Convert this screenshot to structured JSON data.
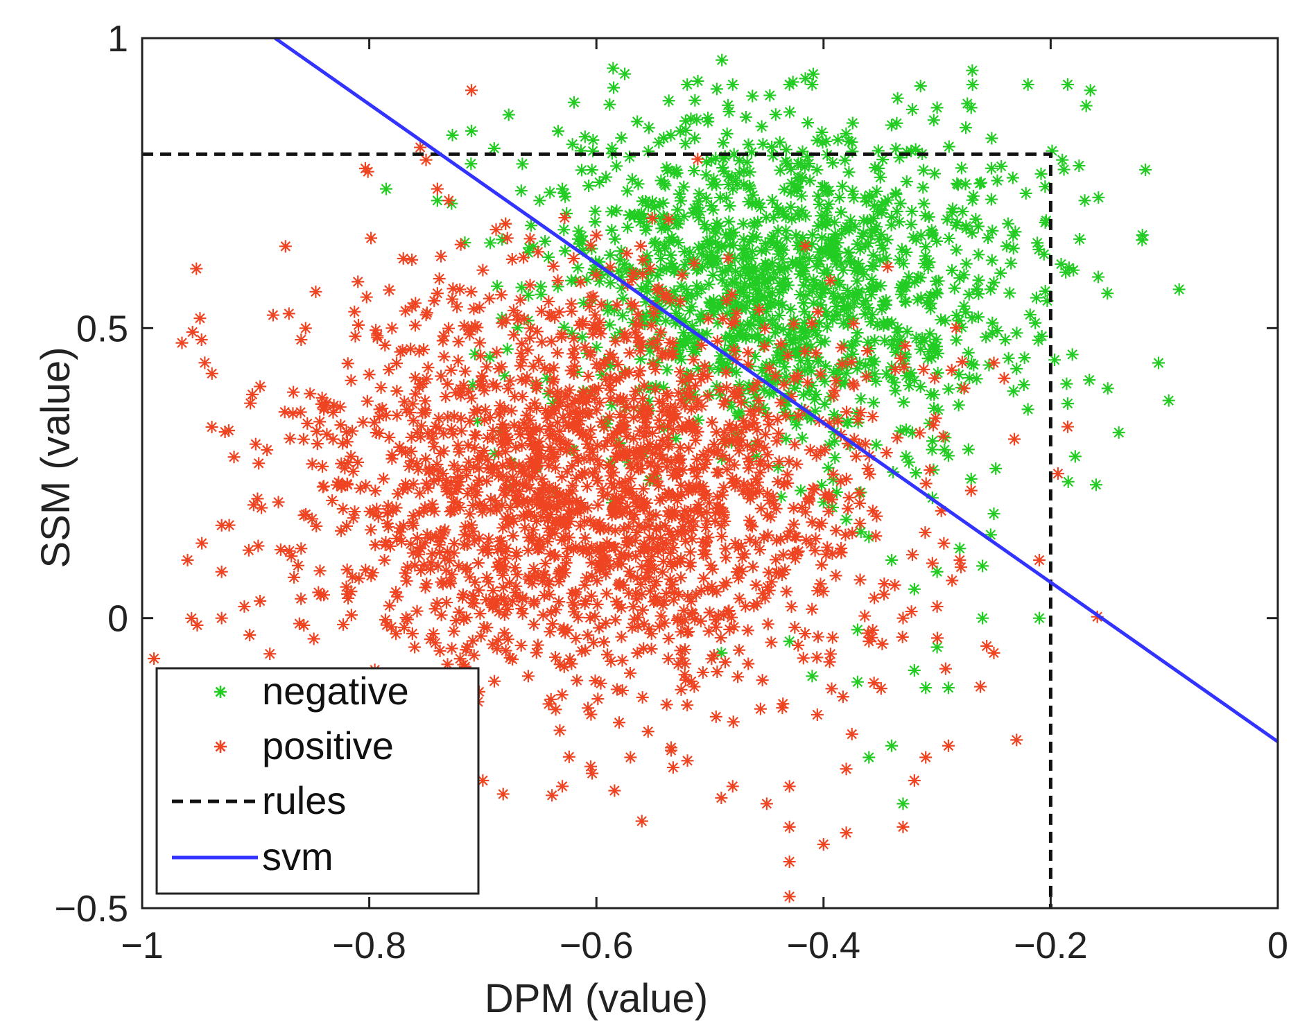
{
  "chart_data": {
    "type": "scatter",
    "title": "",
    "xlabel": "DPM (value)",
    "ylabel": "SSM (value)",
    "xlim": [
      -1,
      0
    ],
    "ylim": [
      -0.5,
      1
    ],
    "xticks": [
      -1,
      -0.8,
      -0.6,
      -0.4,
      -0.2,
      0
    ],
    "xtick_labels": [
      "−1",
      "−0.8",
      "−0.6",
      "−0.4",
      "−0.2",
      "0"
    ],
    "yticks": [
      -0.5,
      0,
      0.5,
      1
    ],
    "ytick_labels": [
      "−0.5",
      "0",
      "0.5",
      "1"
    ],
    "grid": false,
    "legend_position": "bottom-left",
    "colors": {
      "negative": "#22cc22",
      "positive": "#ee4422",
      "rules": "#111111",
      "svm": "#3333ff"
    },
    "series": [
      {
        "name": "negative",
        "kind": "scatter",
        "marker": "asterisk",
        "cluster": {
          "count": 1300,
          "center": [
            -0.44,
            0.58
          ],
          "spread": [
            0.11,
            0.15
          ]
        },
        "points": [
          [
            -0.52,
            0.92
          ],
          [
            -0.48,
            0.92
          ],
          [
            -0.41,
            0.92
          ],
          [
            -0.43,
            0.92
          ],
          [
            -0.22,
            0.92
          ],
          [
            -0.185,
            0.92
          ],
          [
            -0.165,
            0.91
          ],
          [
            -0.69,
            0.81
          ],
          [
            -0.71,
            0.84
          ],
          [
            -0.74,
            0.72
          ],
          [
            -0.15,
            0.56
          ],
          [
            -0.105,
            0.44
          ],
          [
            -0.14,
            0.32
          ],
          [
            -0.16,
            0.23
          ],
          [
            -0.21,
            0.0
          ],
          [
            -0.26,
            0.0
          ],
          [
            -0.3,
            -0.05
          ],
          [
            -0.32,
            -0.09
          ],
          [
            -0.29,
            -0.12
          ],
          [
            -0.31,
            -0.12
          ],
          [
            -0.37,
            -0.11
          ],
          [
            -0.36,
            -0.24
          ],
          [
            -0.34,
            -0.22
          ],
          [
            -0.33,
            -0.32
          ],
          [
            -0.41,
            -0.1
          ],
          [
            -0.49,
            -0.06
          ],
          [
            -0.43,
            -0.04
          ],
          [
            -0.37,
            -0.02
          ],
          [
            -0.26,
            0.09
          ],
          [
            -0.25,
            0.18
          ],
          [
            -0.24,
            0.48
          ],
          [
            -0.23,
            0.43
          ],
          [
            -0.22,
            0.36
          ],
          [
            -0.185,
            0.37
          ],
          [
            -0.175,
            0.78
          ],
          [
            -0.17,
            0.72
          ],
          [
            -0.18,
            0.6
          ],
          [
            -0.34,
            0.85
          ],
          [
            -0.3,
            0.88
          ],
          [
            -0.27,
            0.88
          ],
          [
            -0.63,
            0.74
          ],
          [
            -0.65,
            0.72
          ],
          [
            -0.68,
            0.68
          ],
          [
            -0.66,
            0.63
          ],
          [
            -0.61,
            0.83
          ],
          [
            -0.6,
            0.5
          ],
          [
            -0.59,
            0.53
          ],
          [
            -0.55,
            0.44
          ],
          [
            -0.46,
            0.3
          ],
          [
            -0.44,
            0.26
          ],
          [
            -0.42,
            0.22
          ],
          [
            -0.4,
            0.2
          ],
          [
            -0.38,
            0.17
          ],
          [
            -0.36,
            0.14
          ],
          [
            -0.34,
            0.1
          ],
          [
            -0.32,
            0.05
          ],
          [
            -0.3,
            0.08
          ],
          [
            -0.28,
            0.12
          ],
          [
            -0.29,
            0.28
          ],
          [
            -0.27,
            0.24
          ]
        ]
      },
      {
        "name": "positive",
        "kind": "scatter",
        "marker": "asterisk",
        "cluster": {
          "count": 1900,
          "center": [
            -0.6,
            0.22
          ],
          "spread": [
            0.13,
            0.17
          ]
        },
        "points": [
          [
            -0.71,
            0.91
          ],
          [
            -0.75,
            0.79
          ],
          [
            -0.74,
            0.74
          ],
          [
            -0.73,
            0.72
          ],
          [
            -0.96,
            0.1
          ],
          [
            -0.93,
            0.0
          ],
          [
            -0.93,
            0.08
          ],
          [
            -0.93,
            0.16
          ],
          [
            -0.91,
            0.02
          ],
          [
            -0.9,
            0.3
          ],
          [
            -0.89,
            0.29
          ],
          [
            -0.86,
            0.48
          ],
          [
            -0.81,
            0.58
          ],
          [
            -0.77,
            0.62
          ],
          [
            -0.7,
            -0.28
          ],
          [
            -0.63,
            -0.29
          ],
          [
            -0.57,
            -0.24
          ],
          [
            -0.56,
            -0.35
          ],
          [
            -0.49,
            -0.31
          ],
          [
            -0.48,
            -0.29
          ],
          [
            -0.45,
            -0.32
          ],
          [
            -0.43,
            -0.29
          ],
          [
            -0.43,
            -0.36
          ],
          [
            -0.4,
            -0.39
          ],
          [
            -0.38,
            -0.37
          ],
          [
            -0.43,
            -0.42
          ],
          [
            -0.43,
            -0.48
          ],
          [
            -0.375,
            -0.2
          ],
          [
            -0.38,
            -0.26
          ],
          [
            -0.33,
            -0.36
          ],
          [
            -0.32,
            -0.28
          ],
          [
            -0.31,
            -0.24
          ],
          [
            -0.29,
            -0.22
          ],
          [
            -0.25,
            -0.06
          ],
          [
            -0.23,
            -0.21
          ],
          [
            -0.21,
            0.1
          ],
          [
            -0.185,
            0.33
          ],
          [
            -0.25,
            0.44
          ],
          [
            -0.27,
            0.22
          ],
          [
            -0.28,
            0.1
          ],
          [
            -0.3,
            0.02
          ],
          [
            -0.33,
            0.0
          ],
          [
            -0.36,
            -0.04
          ],
          [
            -0.52,
            -0.15
          ],
          [
            -0.58,
            -0.18
          ],
          [
            -0.64,
            -0.14
          ],
          [
            -0.66,
            -0.1
          ],
          [
            -0.72,
            -0.07
          ],
          [
            -0.76,
            -0.05
          ],
          [
            -0.84,
            0.04
          ],
          [
            -0.86,
            0.12
          ],
          [
            -0.88,
            0.2
          ],
          [
            -0.84,
            0.36
          ],
          [
            -0.8,
            0.42
          ],
          [
            -0.78,
            0.5
          ],
          [
            -0.74,
            0.56
          ],
          [
            -0.7,
            0.6
          ],
          [
            -0.68,
            0.68
          ],
          [
            -0.62,
            0.62
          ],
          [
            -0.6,
            0.66
          ]
        ]
      },
      {
        "name": "rules",
        "kind": "line",
        "style": "dashed",
        "points": [
          [
            -1,
            0.8
          ],
          [
            -0.2,
            0.8
          ],
          [
            -0.2,
            -0.5
          ]
        ]
      },
      {
        "name": "svm",
        "kind": "line",
        "style": "solid",
        "points": [
          [
            -0.883,
            1.0
          ],
          [
            0,
            -0.213
          ]
        ]
      }
    ],
    "legend": [
      "negative",
      "positive",
      "rules",
      "svm"
    ]
  }
}
